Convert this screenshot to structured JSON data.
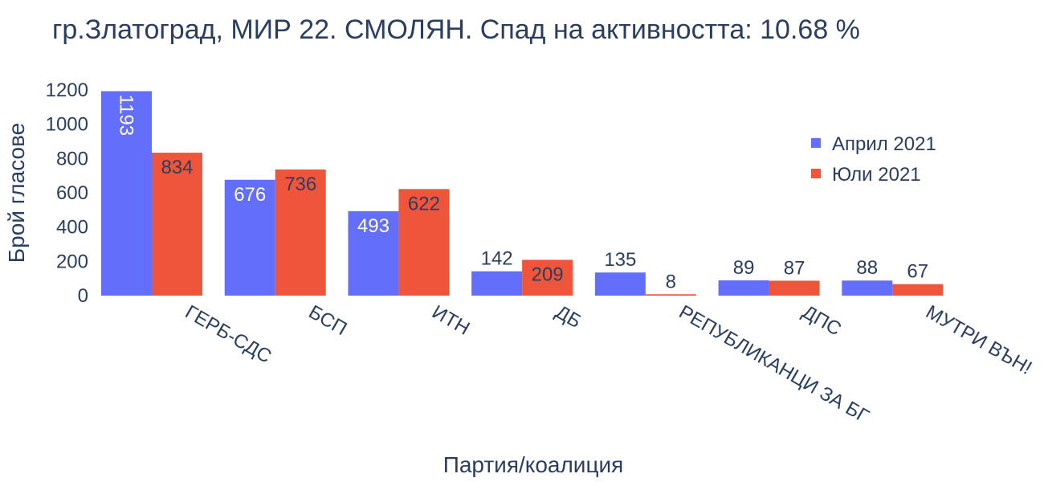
{
  "chart_data": {
    "type": "bar",
    "title": "гр.Златоград, МИР 22. СМОЛЯН. Спад на активността: 10.68 %",
    "xlabel": "Партия/коалиция",
    "ylabel": "Брой гласове",
    "categories": [
      "ГЕРБ-СДС",
      "БСП",
      "ИТН",
      "ДБ",
      "РЕПУБЛИКАНЦИ ЗА БГ",
      "ДПС",
      "МУТРИ ВЪН!"
    ],
    "series": [
      {
        "name": "Април 2021",
        "color": "#636efa",
        "values": [
          1193,
          676,
          493,
          142,
          135,
          89,
          88
        ]
      },
      {
        "name": "Юли 2021",
        "color": "#ef553b",
        "values": [
          834,
          736,
          622,
          209,
          8,
          87,
          67
        ]
      }
    ],
    "yticks": [
      0,
      200,
      400,
      600,
      800,
      1000,
      1200
    ],
    "ylim": [
      0,
      1200
    ],
    "grid": false,
    "legend_position": "top-right"
  }
}
